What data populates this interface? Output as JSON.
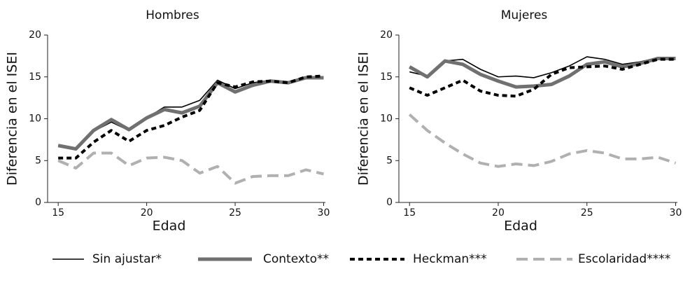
{
  "chart_data": [
    {
      "type": "line",
      "title": "Hombres",
      "xlabel": "Edad",
      "ylabel": "Diferencia en el ISEI",
      "x": [
        15,
        16,
        17,
        18,
        19,
        20,
        21,
        22,
        23,
        24,
        25,
        26,
        27,
        28,
        29,
        30
      ],
      "xlim": [
        14.4,
        30.1
      ],
      "xticks": [
        15,
        20,
        25,
        30
      ],
      "ylim": [
        0,
        20
      ],
      "yticks": [
        0,
        5,
        10,
        15,
        20
      ],
      "series": [
        {
          "name": "Sin ajustar*",
          "color": "#000000",
          "width": 1.6,
          "dash": "none",
          "values": [
            6.8,
            6.4,
            8.5,
            9.6,
            8.6,
            10.1,
            11.4,
            11.4,
            12.2,
            14.6,
            13.6,
            14.3,
            14.6,
            14.3,
            15.0,
            14.9
          ]
        },
        {
          "name": "Contexto**",
          "color": "#707070",
          "width": 5,
          "dash": "none",
          "values": [
            6.8,
            6.4,
            8.6,
            9.9,
            8.7,
            10.1,
            11.1,
            10.7,
            11.5,
            14.3,
            13.2,
            14.0,
            14.5,
            14.3,
            14.9,
            14.9
          ]
        },
        {
          "name": "Heckman***",
          "color": "#000000",
          "width": 4,
          "dash": "7 5",
          "values": [
            5.3,
            5.3,
            7.2,
            8.6,
            7.3,
            8.6,
            9.2,
            10.2,
            11.0,
            14.3,
            13.8,
            14.4,
            14.5,
            14.3,
            15.0,
            15.1
          ]
        },
        {
          "name": "Escolaridad****",
          "color": "#b0b0b0",
          "width": 4,
          "dash": "16 8",
          "values": [
            5.0,
            4.1,
            5.9,
            5.9,
            4.4,
            5.3,
            5.4,
            5.0,
            3.5,
            4.3,
            2.3,
            3.1,
            3.2,
            3.2,
            3.9,
            3.4
          ]
        }
      ]
    },
    {
      "type": "line",
      "title": "Mujeres",
      "xlabel": "Edad",
      "ylabel": "Diferencia en el ISEI",
      "x": [
        15,
        16,
        17,
        18,
        19,
        20,
        21,
        22,
        23,
        24,
        25,
        26,
        27,
        28,
        29,
        30
      ],
      "xlim": [
        14.4,
        30.1
      ],
      "xticks": [
        15,
        20,
        25,
        30
      ],
      "ylim": [
        0,
        20
      ],
      "yticks": [
        0,
        5,
        10,
        15,
        20
      ],
      "series": [
        {
          "name": "Sin ajustar*",
          "color": "#000000",
          "width": 1.6,
          "dash": "none",
          "values": [
            15.6,
            15.1,
            16.9,
            17.1,
            15.9,
            15.0,
            15.1,
            14.9,
            15.5,
            16.3,
            17.4,
            17.1,
            16.5,
            16.8,
            17.3,
            17.2
          ]
        },
        {
          "name": "Contexto**",
          "color": "#707070",
          "width": 5,
          "dash": "none",
          "values": [
            16.2,
            15.0,
            16.9,
            16.5,
            15.3,
            14.5,
            13.8,
            13.9,
            14.1,
            15.1,
            16.5,
            16.8,
            16.2,
            16.6,
            17.2,
            17.2
          ]
        },
        {
          "name": "Heckman***",
          "color": "#000000",
          "width": 4,
          "dash": "7 5",
          "values": [
            13.7,
            12.8,
            13.7,
            14.6,
            13.3,
            12.8,
            12.7,
            13.5,
            15.3,
            16.1,
            16.2,
            16.3,
            15.9,
            16.5,
            17.1,
            17.1
          ]
        },
        {
          "name": "Escolaridad****",
          "color": "#b0b0b0",
          "width": 4,
          "dash": "16 8",
          "values": [
            10.5,
            8.6,
            7.1,
            5.8,
            4.7,
            4.3,
            4.6,
            4.4,
            4.9,
            5.8,
            6.2,
            5.9,
            5.2,
            5.2,
            5.4,
            4.7
          ]
        }
      ]
    }
  ]
}
